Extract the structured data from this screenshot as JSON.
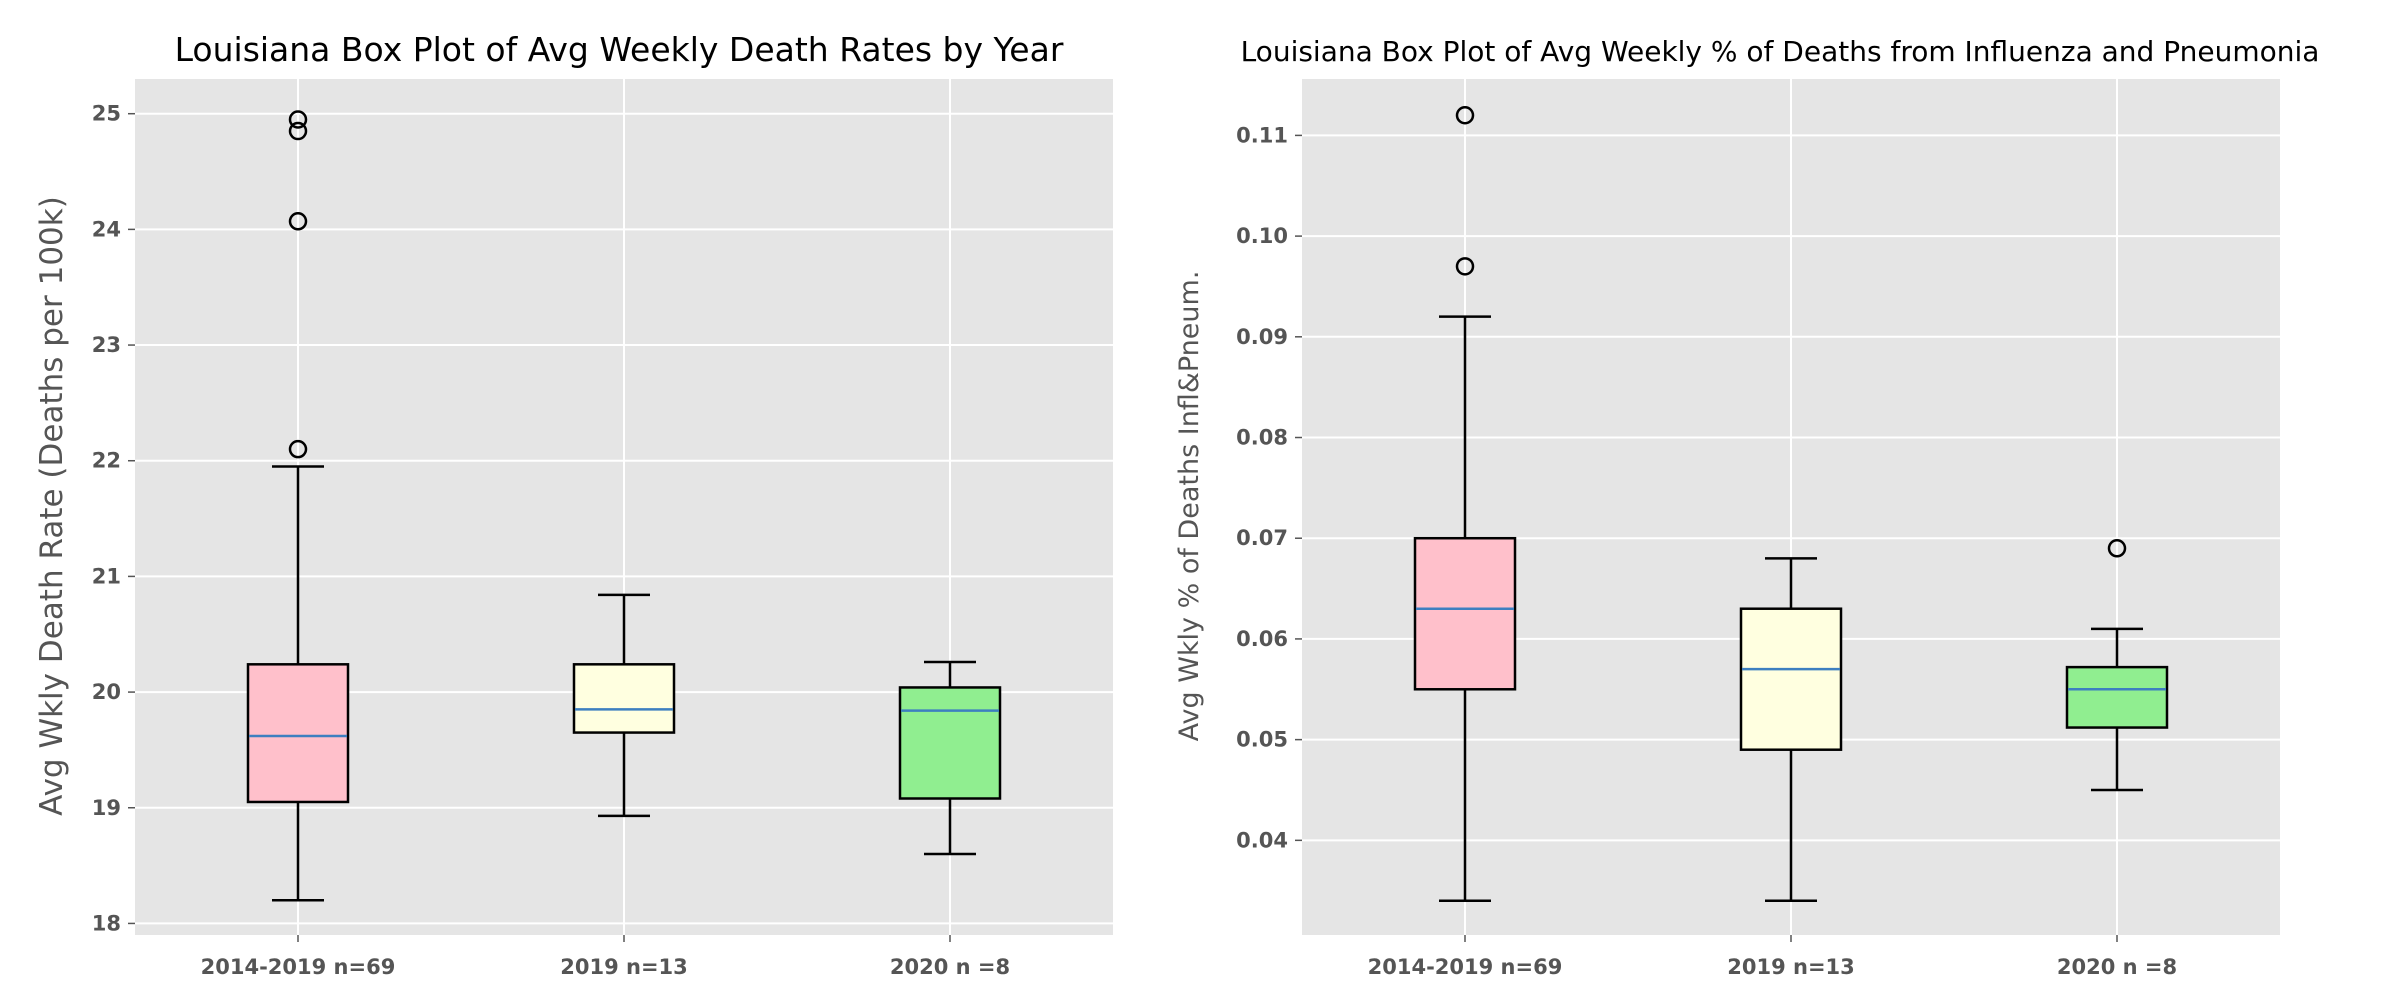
{
  "chart_data": [
    {
      "type": "box",
      "title": "Louisiana Box Plot of Avg Weekly Death Rates by Year",
      "xlabel": "",
      "ylabel": "Avg Wkly Death Rate (Deaths per 100k)",
      "ylim": [
        17.9,
        25.3
      ],
      "yticks": [
        "18",
        "19",
        "20",
        "21",
        "22",
        "23",
        "24",
        "25"
      ],
      "ytick_values": [
        18,
        19,
        20,
        21,
        22,
        23,
        24,
        25
      ],
      "grid": true,
      "categories": [
        "2014-2019 n=69",
        "2019 n=13",
        "2020 n =8"
      ],
      "boxes": [
        {
          "whisker_low": 18.2,
          "q1": 19.05,
          "median": 19.62,
          "q3": 20.24,
          "whisker_high": 21.95,
          "outliers": [
            22.1,
            24.07,
            24.85,
            24.95
          ],
          "color": "#ffc0cb"
        },
        {
          "whisker_low": 18.93,
          "q1": 19.65,
          "median": 19.85,
          "q3": 20.24,
          "whisker_high": 20.84,
          "outliers": [],
          "color": "#ffffe0"
        },
        {
          "whisker_low": 18.6,
          "q1": 19.08,
          "median": 19.84,
          "q3": 20.04,
          "whisker_high": 20.26,
          "outliers": [],
          "color": "#90ee90"
        }
      ]
    },
    {
      "type": "box",
      "title": "Louisiana Box Plot of Avg Weekly % of Deaths from Influenza and Pneumonia",
      "xlabel": "",
      "ylabel": "Avg Wkly % of Deaths Infl&Pneum.",
      "ylim": [
        0.0306,
        0.1156
      ],
      "yticks": [
        "0.04",
        "0.05",
        "0.06",
        "0.07",
        "0.08",
        "0.09",
        "0.10",
        "0.11"
      ],
      "ytick_values": [
        0.04,
        0.05,
        0.06,
        0.07,
        0.08,
        0.09,
        0.1,
        0.11
      ],
      "grid": true,
      "categories": [
        "2014-2019 n=69",
        "2019 n=13",
        "2020 n =8"
      ],
      "boxes": [
        {
          "whisker_low": 0.034,
          "q1": 0.055,
          "median": 0.063,
          "q3": 0.07,
          "whisker_high": 0.092,
          "outliers": [
            0.097,
            0.112
          ],
          "color": "#ffc0cb"
        },
        {
          "whisker_low": 0.034,
          "q1": 0.049,
          "median": 0.057,
          "q3": 0.063,
          "whisker_high": 0.068,
          "outliers": [],
          "color": "#ffffe0"
        },
        {
          "whisker_low": 0.045,
          "q1": 0.0512,
          "median": 0.055,
          "q3": 0.0572,
          "whisker_high": 0.061,
          "outliers": [
            0.069
          ],
          "color": "#90ee90"
        }
      ]
    }
  ]
}
